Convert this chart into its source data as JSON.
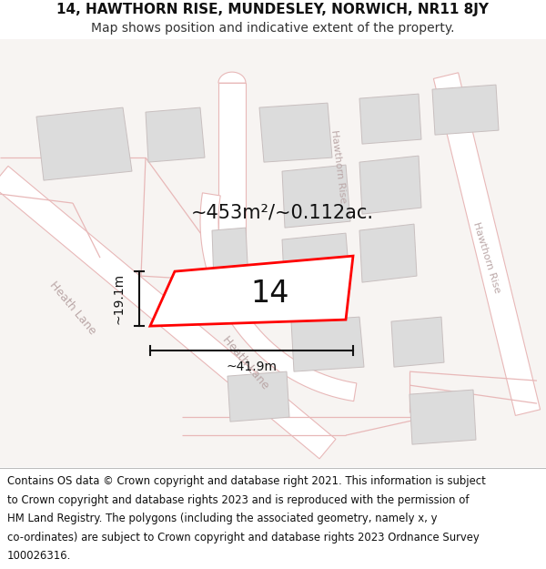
{
  "title_line1": "14, HAWTHORN RISE, MUNDESLEY, NORWICH, NR11 8JY",
  "title_line2": "Map shows position and indicative extent of the property.",
  "footer_lines": [
    "Contains OS data © Crown copyright and database right 2021. This information is subject",
    "to Crown copyright and database rights 2023 and is reproduced with the permission of",
    "HM Land Registry. The polygons (including the associated geometry, namely x, y",
    "co-ordinates) are subject to Crown copyright and database rights 2023 Ordnance Survey",
    "100026316."
  ],
  "area_label": "~453m²/~0.112ac.",
  "number_label": "14",
  "width_label": "~41.9m",
  "height_label": "~19.1m",
  "map_bg": "#f7f4f2",
  "road_color": "#ffffff",
  "road_edge": "#e8b8b8",
  "building_fill": "#dcdcdc",
  "building_edge": "#c8bfbf",
  "plot_edge": "#ff0000",
  "plot_fill": "#ffffff",
  "annot_color": "#111111",
  "road_label_color": "#bba8a8",
  "title_fontsize": 11,
  "subtitle_fontsize": 10,
  "footer_fontsize": 8.4,
  "area_fontsize": 15,
  "number_fontsize": 24,
  "dim_fontsize": 10
}
